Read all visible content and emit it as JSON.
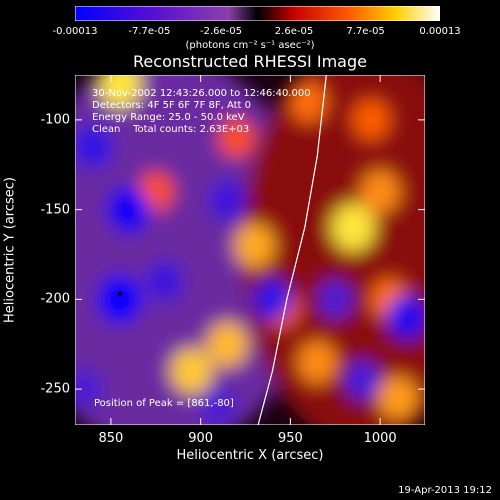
{
  "chart_data": {
    "type": "heatmap",
    "title": "Reconstructed RHESSI Image",
    "xlabel": "Heliocentric X (arcsec)",
    "ylabel": "Heliocentric Y (arcsec)",
    "xlim": [
      830,
      1025
    ],
    "ylim": [
      -270,
      -75
    ],
    "x_ticks": [
      "850",
      "900",
      "950",
      "1000"
    ],
    "x_tick_values": [
      850,
      900,
      950,
      1000
    ],
    "y_ticks": [
      "-100",
      "-150",
      "-200",
      "-250"
    ],
    "y_tick_values": [
      -100,
      -150,
      -200,
      -250
    ],
    "colorbar": {
      "ticks": [
        "-0.00013",
        "-7.7e-05",
        "-2.6e-05",
        "2.6e-05",
        "7.7e-05",
        "0.00013"
      ],
      "tick_values": [
        -0.00013,
        -7.7e-05,
        -2.6e-05,
        2.6e-05,
        7.7e-05,
        0.00013
      ],
      "units": "(photons cm⁻² s⁻¹ asec⁻²)",
      "range": [
        -0.00013,
        0.00013
      ],
      "colormap": [
        "#0000ff",
        "#6a00c8",
        "#8a3aa8",
        "#c80000",
        "#ff5000",
        "#ffb000",
        "#ffffff"
      ]
    },
    "annotations": [
      "30-Nov-2002 12:43:26.000 to 12:46:40.000",
      "Detectors: 4F 5F 6F 7F 8F, Att 0",
      "Energy Range: 25.0 - 50.0 keV",
      "Clean    Total counts: 2.63E+03"
    ],
    "peak_label": "Position of Peak = [861,-80]",
    "limb_curve": [
      [
        970,
        -75
      ],
      [
        965,
        -120
      ],
      [
        958,
        -160
      ],
      [
        948,
        -200
      ],
      [
        940,
        -240
      ],
      [
        932,
        -270
      ]
    ],
    "blobs": [
      {
        "x": 895,
        "y": -240,
        "v": 0.9
      },
      {
        "x": 915,
        "y": -225,
        "v": 0.85
      },
      {
        "x": 855,
        "y": -80,
        "v": 1.0
      },
      {
        "x": 985,
        "y": -160,
        "v": 1.0
      },
      {
        "x": 1000,
        "y": -140,
        "v": 0.7
      },
      {
        "x": 930,
        "y": -170,
        "v": 0.8
      },
      {
        "x": 960,
        "y": -90,
        "v": 0.6
      },
      {
        "x": 1010,
        "y": -255,
        "v": 0.75
      },
      {
        "x": 965,
        "y": -235,
        "v": 0.7
      },
      {
        "x": 875,
        "y": -140,
        "v": 0.5
      },
      {
        "x": 945,
        "y": -205,
        "v": 0.55
      },
      {
        "x": 1005,
        "y": -200,
        "v": 0.6
      },
      {
        "x": 995,
        "y": -100,
        "v": 0.55
      },
      {
        "x": 920,
        "y": -110,
        "v": 0.5
      },
      {
        "x": 855,
        "y": -200,
        "v": -1.0
      },
      {
        "x": 860,
        "y": -150,
        "v": -0.9
      },
      {
        "x": 840,
        "y": -115,
        "v": -0.7
      },
      {
        "x": 880,
        "y": -190,
        "v": -0.6
      },
      {
        "x": 915,
        "y": -145,
        "v": -0.6
      },
      {
        "x": 940,
        "y": -200,
        "v": -0.7
      },
      {
        "x": 1015,
        "y": -210,
        "v": -0.8
      },
      {
        "x": 975,
        "y": -200,
        "v": -0.5
      },
      {
        "x": 990,
        "y": -245,
        "v": -0.55
      },
      {
        "x": 910,
        "y": -260,
        "v": -0.5
      },
      {
        "x": 835,
        "y": -250,
        "v": -0.5
      }
    ]
  },
  "footer": {
    "date": "19-Apr-2013 19:12"
  }
}
